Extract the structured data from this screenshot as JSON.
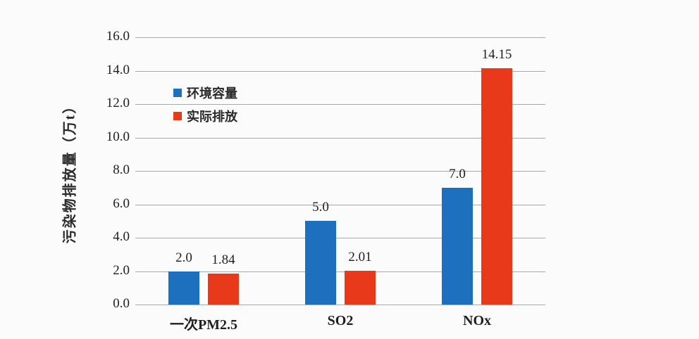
{
  "page": {
    "background_color": "#fbfbfb",
    "gridline_color": "#a8a8a8",
    "text_color": "#1f1f1f"
  },
  "chart_data": {
    "type": "bar",
    "title": "",
    "ylabel": "污染物排放量（万t）",
    "xlabel": "",
    "categories": [
      "一次PM2.5",
      "SO2",
      "NOx"
    ],
    "series": [
      {
        "name": "环境容量",
        "color": "#1c70be",
        "values": [
          2.0,
          5.0,
          7.0
        ],
        "labels": [
          "2.0",
          "5.0",
          "7.0"
        ]
      },
      {
        "name": "实际排放",
        "color": "#e8391b",
        "values": [
          1.84,
          2.01,
          14.15
        ],
        "labels": [
          "1.84",
          "2.01",
          "14.15"
        ]
      }
    ],
    "ylim": [
      0,
      16
    ],
    "ytick_step": 2,
    "ytick_labels": [
      "0.0",
      "2.0",
      "4.0",
      "6.0",
      "8.0",
      "10.0",
      "12.0",
      "14.0",
      "16.0"
    ],
    "grid": true,
    "legend_position": "inside-upper-left"
  }
}
